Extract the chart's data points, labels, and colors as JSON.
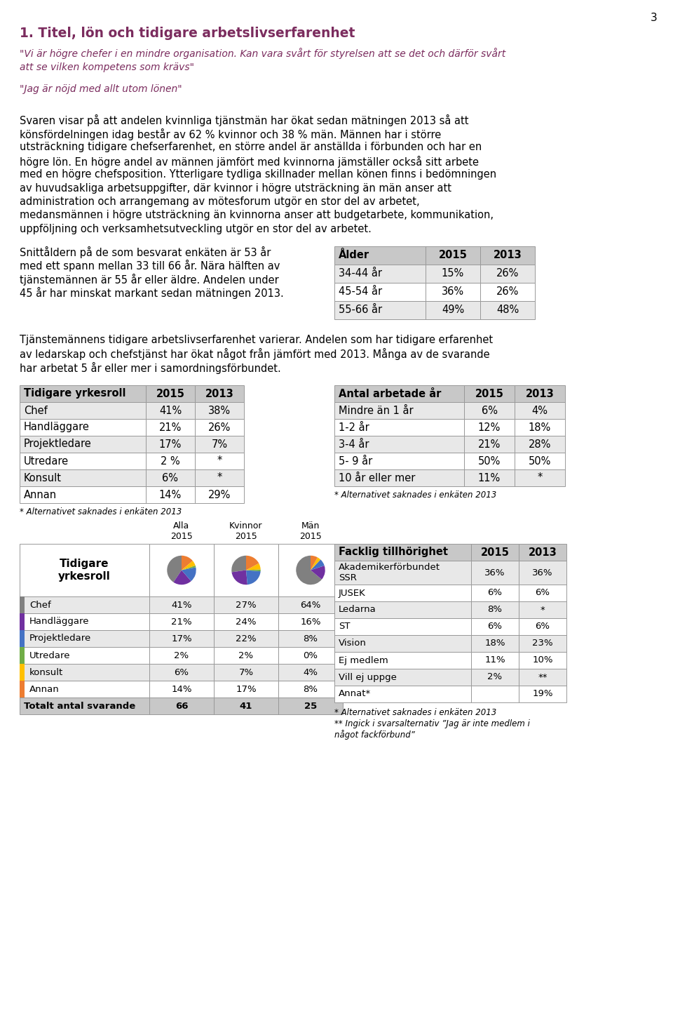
{
  "page_number": "3",
  "title": "1. Titel, lön och tidigare arbetslivserfarenhet",
  "quote1": "\"Vi är högre chefer i en mindre organisation. Kan vara svårt för styrelsen att se det och därför svårt\natt se vilken kompetens som krävs\"",
  "quote2": "\"Jag är nöjd med allt utom lönen\"",
  "body1_lines": [
    "Svaren visar på att andelen kvinnliga tjänstmän har ökat sedan mätningen 2013 så att",
    "könsfördelningen idag består av 62 % kvinnor och 38 % män. Männen har i större",
    "utsträckning tidigare chefserfarenhet, en större andel är anställda i förbunden och har en",
    "högre lön. En högre andel av männen jämfört med kvinnorna jämställer också sitt arbete",
    "med en högre chefsposition. Ytterligare tydliga skillnader mellan könen finns i bedömningen",
    "av huvudsakliga arbetsuppgifter, där kvinnor i högre utsträckning än män anser att",
    "administration och arrangemang av mötesforum utgör en stor del av arbetet,",
    "medansmännen i högre utsträckning än kvinnorna anser att budgetarbete, kommunikation,",
    "uppföljning och verksamhetsutveckling utgör en stor del av arbetet."
  ],
  "body2_lines": [
    "Snittåldern på de som besvarat enkäten är 53 år",
    "med ett spann mellan 33 till 66 år. Nära hälften av",
    "tjänstemännen är 55 år eller äldre. Andelen under",
    "45 år har minskat markant sedan mätningen 2013."
  ],
  "body3_lines": [
    "Tjänstemännens tidigare arbetslivserfarenhet varierar. Andelen som har tidigare erfarenhet",
    "av ledarskap och chefstjänst har ökat något från jämfört med 2013. Många av de svarande",
    "har arbetat 5 år eller mer i samordningsförbundet."
  ],
  "age_table_header": [
    "Ålder",
    "2015",
    "2013"
  ],
  "age_table_rows": [
    [
      "34-44 år",
      "15%",
      "26%"
    ],
    [
      "45-54 år",
      "36%",
      "26%"
    ],
    [
      "55-66 år",
      "49%",
      "48%"
    ]
  ],
  "yr1_header": [
    "Tidigare yrkesroll",
    "2015",
    "2013"
  ],
  "yr1_rows": [
    [
      "Chef",
      "41%",
      "38%"
    ],
    [
      "Handläggare",
      "21%",
      "26%"
    ],
    [
      "Projektledare",
      "17%",
      "7%"
    ],
    [
      "Utredare",
      "2 %",
      "*"
    ],
    [
      "Konsult",
      "6%",
      "*"
    ],
    [
      "Annan",
      "14%",
      "29%"
    ]
  ],
  "yr1_footnote": "* Alternativet saknades i enkäten 2013",
  "aa_header": [
    "Antal arbetade år",
    "2015",
    "2013"
  ],
  "aa_rows": [
    [
      "Mindre än 1 år",
      "6%",
      "4%"
    ],
    [
      "1-2 år",
      "12%",
      "18%"
    ],
    [
      "3-4 år",
      "21%",
      "28%"
    ],
    [
      "5- 9 år",
      "50%",
      "50%"
    ],
    [
      "10 år eller mer",
      "11%",
      "*"
    ]
  ],
  "aa_footnote": "* Alternativet saknades i enkäten 2013",
  "yr2_col_header1": "Alla\n2015",
  "yr2_col_header2": "Kvinnor\n2015",
  "yr2_col_header3": "Män\n2015",
  "yr2_row_label": "Tidigare\nyrkesroll",
  "yr2_rows": [
    [
      "Chef",
      "41%",
      "27%",
      "64%"
    ],
    [
      "Handläggare",
      "21%",
      "24%",
      "16%"
    ],
    [
      "Projektledare",
      "17%",
      "22%",
      "8%"
    ],
    [
      "Utredare",
      "2%",
      "2%",
      "0%"
    ],
    [
      "konsult",
      "6%",
      "7%",
      "4%"
    ],
    [
      "Annan",
      "14%",
      "17%",
      "8%"
    ],
    [
      "Totalt antal svarande",
      "66",
      "41",
      "25"
    ]
  ],
  "pie_alla": [
    41,
    21,
    17,
    2,
    6,
    14
  ],
  "pie_kvinnor": [
    27,
    24,
    22,
    2,
    7,
    17
  ],
  "pie_man": [
    64,
    16,
    8,
    0,
    4,
    8
  ],
  "pie_colors": [
    "#808080",
    "#7030a0",
    "#4472c4",
    "#70ad47",
    "#ffc000",
    "#ed7d31"
  ],
  "fack_header": [
    "Facklig tillhörighet",
    "2015",
    "2013"
  ],
  "fack_rows": [
    [
      "Akademikerförbundet\nSSR",
      "36%",
      "36%"
    ],
    [
      "JUSEK",
      "6%",
      "6%"
    ],
    [
      "Ledarna",
      "8%",
      "*"
    ],
    [
      "ST",
      "6%",
      "6%"
    ],
    [
      "Vision",
      "18%",
      "23%"
    ],
    [
      "Ej medlem",
      "11%",
      "10%"
    ],
    [
      "Vill ej uppge",
      "2%",
      "**"
    ],
    [
      "Annat*",
      "",
      "19%"
    ]
  ],
  "fack_fn1": "* Alternativet saknades i enkäten 2013",
  "fack_fn2": "** Ingick i svarsalternativ ”Jag är inte medlem i\nnågot fackförbund”",
  "title_color": "#7b2c5e",
  "quote_color": "#7b2c5e",
  "header_bg": "#c8c8c8",
  "alt_row_bg": "#e8e8e8",
  "border_color": "#999999"
}
